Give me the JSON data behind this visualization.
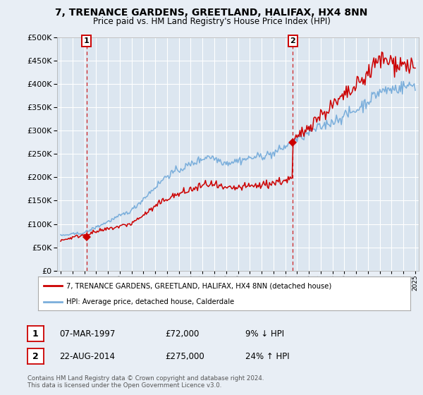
{
  "title1": "7, TRENANCE GARDENS, GREETLAND, HALIFAX, HX4 8NN",
  "title2": "Price paid vs. HM Land Registry's House Price Index (HPI)",
  "legend_line1": "7, TRENANCE GARDENS, GREETLAND, HALIFAX, HX4 8NN (detached house)",
  "legend_line2": "HPI: Average price, detached house, Calderdale",
  "marker1_label": "1",
  "marker1_date": "07-MAR-1997",
  "marker1_price": "£72,000",
  "marker1_hpi": "9% ↓ HPI",
  "marker2_label": "2",
  "marker2_date": "22-AUG-2014",
  "marker2_price": "£275,000",
  "marker2_hpi": "24% ↑ HPI",
  "footer": "Contains HM Land Registry data © Crown copyright and database right 2024.\nThis data is licensed under the Open Government Licence v3.0.",
  "red_color": "#cc0000",
  "blue_color": "#7aaedb",
  "bg_color": "#e8eef5",
  "plot_bg": "#dce6f0",
  "grid_color": "#ffffff",
  "ylim_min": 0,
  "ylim_max": 500000,
  "year_start": 1995,
  "year_end": 2025,
  "marker1_year": 1997.18,
  "marker2_year": 2014.64,
  "marker1_value": 72000,
  "marker2_value": 275000
}
